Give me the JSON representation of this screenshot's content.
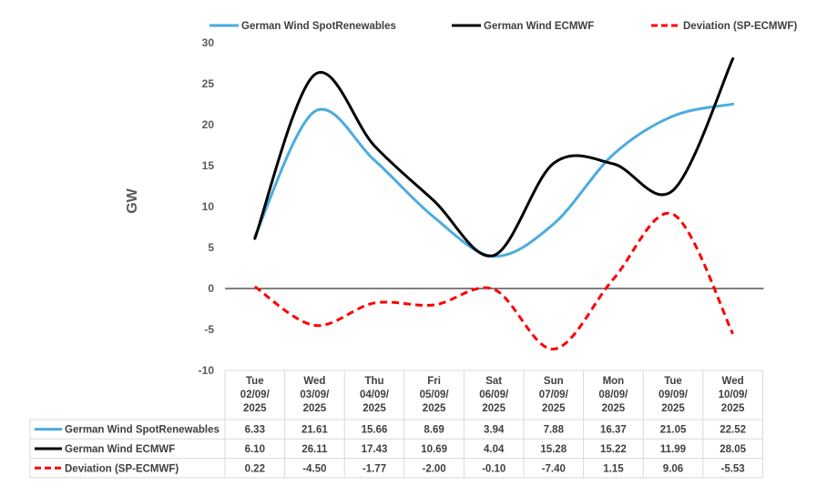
{
  "chart_data": {
    "type": "line",
    "title": "",
    "xlabel": "",
    "ylabel": "GW",
    "ylim": [
      -10,
      30
    ],
    "yticks": [
      30,
      25,
      20,
      15,
      10,
      5,
      0,
      -5,
      -10
    ],
    "categories": [
      [
        "Tue",
        "02/09/",
        "2025"
      ],
      [
        "Wed",
        "03/09/",
        "2025"
      ],
      [
        "Thu",
        "04/09/",
        "2025"
      ],
      [
        "Fri",
        "05/09/",
        "2025"
      ],
      [
        "Sat",
        "06/09/",
        "2025"
      ],
      [
        "Sun",
        "07/09/",
        "2025"
      ],
      [
        "Mon",
        "08/09/",
        "2025"
      ],
      [
        "Tue",
        "09/09/",
        "2025"
      ],
      [
        "Wed",
        "10/09/",
        "2025"
      ]
    ],
    "series": [
      {
        "name": "German Wind SpotRenewables",
        "color": "#4aacde",
        "dash": "solid",
        "values": [
          6.33,
          21.61,
          15.66,
          8.69,
          3.94,
          7.88,
          16.37,
          21.05,
          22.52
        ],
        "labels": [
          "6.33",
          "21.61",
          "15.66",
          "8.69",
          "3.94",
          "7.88",
          "16.37",
          "21.05",
          "22.52"
        ]
      },
      {
        "name": "German Wind ECMWF",
        "color": "#000000",
        "dash": "solid",
        "values": [
          6.1,
          26.11,
          17.43,
          10.69,
          4.04,
          15.28,
          15.22,
          11.99,
          28.05
        ],
        "labels": [
          "6.10",
          "26.11",
          "17.43",
          "10.69",
          "4.04",
          "15.28",
          "15.22",
          "11.99",
          "28.05"
        ]
      },
      {
        "name": "Deviation (SP-ECMWF)",
        "color": "#ff0000",
        "dash": "dashed",
        "values": [
          0.22,
          -4.5,
          -1.77,
          -2.0,
          -0.1,
          -7.4,
          1.15,
          9.06,
          -5.53
        ],
        "labels": [
          "0.22",
          "-4.50",
          "-1.77",
          "-2.00",
          "-0.10",
          "-7.40",
          "1.15",
          "9.06",
          "-5.53"
        ]
      }
    ],
    "legend_position": "top",
    "data_table": true
  }
}
